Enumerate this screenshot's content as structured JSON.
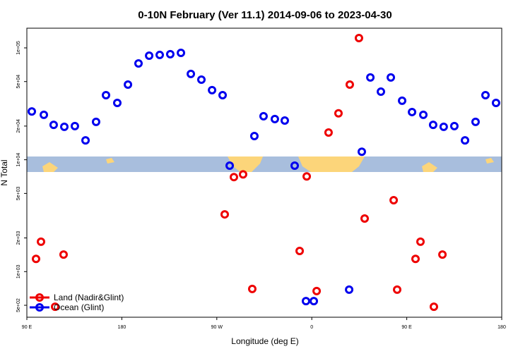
{
  "chart_data": {
    "type": "scatter",
    "title": "0-10N February (Ver 11.1)   2014-09-06 to 2023-04-30",
    "x_label": "Longitude (deg E)",
    "y_label": "N Total",
    "log_y": true,
    "legend_position": "bottom-left",
    "xlim": [
      90,
      540
    ],
    "xticks": [
      {
        "value": 90,
        "label": "90 E"
      },
      {
        "value": 180,
        "label": "180"
      },
      {
        "value": 270,
        "label": "90 W"
      },
      {
        "value": 360,
        "label": "0"
      },
      {
        "value": 450,
        "label": "90 E"
      },
      {
        "value": 540,
        "label": "180"
      }
    ],
    "ylim": [
      391,
      150000
    ],
    "yticks": [
      {
        "value": 500,
        "label": "5e+02"
      },
      {
        "value": 1000,
        "label": "1e+03"
      },
      {
        "value": 2000,
        "label": "2e+03"
      },
      {
        "value": 5000,
        "label": "5e+03"
      },
      {
        "value": 10000,
        "label": "1e+04"
      },
      {
        "value": 20000,
        "label": "2e+04"
      },
      {
        "value": 50000,
        "label": "5e+04"
      },
      {
        "value": 100000,
        "label": "1e+05"
      }
    ],
    "series": [
      {
        "name": "Land (Nadir&Glint)",
        "color": "#ee0000",
        "x": [
          98.7,
          103.4,
          116.8,
          124.8,
          277.5,
          286.2,
          294.9,
          303.6,
          348.5,
          355.2,
          364.6,
          375.9,
          385.3,
          396,
          404.7,
          410.1,
          437.6,
          440.9,
          458.3,
          463,
          475.7,
          483.8
        ],
        "values": [
          1300,
          1850,
          485,
          1420,
          3250,
          7000,
          7400,
          700,
          1530,
          7100,
          670,
          17500,
          26000,
          47000,
          122500,
          2980,
          4350,
          690,
          1300,
          1850,
          485,
          1420
        ]
      },
      {
        "name": "Ocean (Glint)",
        "color": "#0000ee",
        "x": [
          94.7,
          106.1,
          115.4,
          125.5,
          135.5,
          145.6,
          155.6,
          165,
          175.7,
          185.8,
          195.8,
          205.9,
          215.9,
          225.9,
          236,
          245.4,
          255.4,
          265.5,
          275.5,
          282.2,
          305.6,
          314.3,
          325,
          334.4,
          343.8,
          354.5,
          361.9,
          395.4,
          407.4,
          415.5,
          425.5,
          434.9,
          445.6,
          455,
          465.7,
          475,
          485,
          495.1,
          505.2,
          515.2,
          524.6,
          534.6
        ],
        "values": [
          27000,
          25200,
          20500,
          19700,
          20000,
          14900,
          21800,
          37800,
          32200,
          47000,
          72600,
          85200,
          86500,
          87800,
          90300,
          58500,
          52000,
          41900,
          37800,
          8850,
          16300,
          24500,
          23100,
          22400,
          8850,
          545,
          545,
          690,
          11800,
          54400,
          40600,
          54400,
          33700,
          26700,
          25200,
          20500,
          19700,
          20000,
          14900,
          21800,
          37800,
          32200
        ]
      }
    ]
  }
}
